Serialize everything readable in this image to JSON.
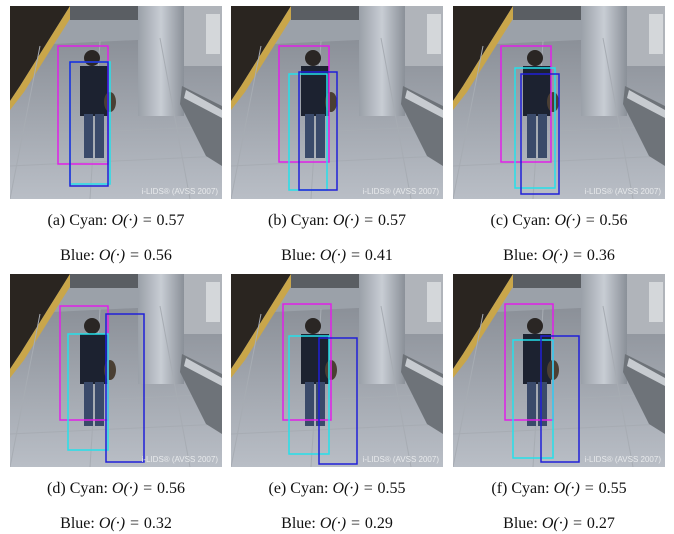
{
  "watermark": "i-LIDS® (AVSS 2007)",
  "colors": {
    "cyan_box": "#25e0ea",
    "blue_box": "#2020d8",
    "magenta_box": "#e020e8"
  },
  "panels": [
    {
      "label": "(a)",
      "cyan_name": "Cyan:",
      "cyan_value": "0.57",
      "blue_name": "Blue:",
      "blue_value": "0.56"
    },
    {
      "label": "(b)",
      "cyan_name": "Cyan:",
      "cyan_value": "0.57",
      "blue_name": "Blue:",
      "blue_value": "0.41"
    },
    {
      "label": "(c)",
      "cyan_name": "Cyan:",
      "cyan_value": "0.56",
      "blue_name": "Blue:",
      "blue_value": "0.36"
    },
    {
      "label": "(d)",
      "cyan_name": "Cyan:",
      "cyan_value": "0.56",
      "blue_name": "Blue:",
      "blue_value": "0.32"
    },
    {
      "label": "(e)",
      "cyan_name": "Cyan:",
      "cyan_value": "0.55",
      "blue_name": "Blue:",
      "blue_value": "0.29"
    },
    {
      "label": "(f)",
      "cyan_name": "Cyan:",
      "cyan_value": "0.55",
      "blue_name": "Blue:",
      "blue_value": "0.27"
    }
  ],
  "math": {
    "operator": "O(·) ="
  }
}
